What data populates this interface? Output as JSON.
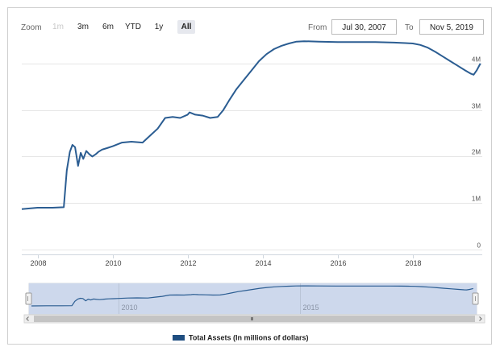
{
  "range_selector": {
    "zoom_label": "Zoom",
    "buttons": [
      {
        "label": "1m",
        "state": "disabled"
      },
      {
        "label": "3m",
        "state": "normal"
      },
      {
        "label": "6m",
        "state": "normal"
      },
      {
        "label": "YTD",
        "state": "normal"
      },
      {
        "label": "1y",
        "state": "normal"
      },
      {
        "label": "All",
        "state": "active"
      }
    ],
    "from_label": "From",
    "from_value": "Jul 30, 2007",
    "to_label": "To",
    "to_value": "Nov 5, 2019"
  },
  "colors": {
    "series": "#2b5d92",
    "legend_swatch": "#1f4e80",
    "navigator_fill": "#cdd8ec",
    "grid": "#e6e6e6"
  },
  "chart_data": {
    "type": "line",
    "title": "",
    "xlabel": "",
    "ylabel": "",
    "xlim": [
      2007.58,
      2019.85
    ],
    "ylim": [
      0,
      4500000
    ],
    "x_ticks": [
      2008,
      2010,
      2012,
      2014,
      2016,
      2018
    ],
    "x_tick_labels": [
      "2008",
      "2010",
      "2012",
      "2014",
      "2016",
      "2018"
    ],
    "y_ticks": [
      0,
      1000000,
      2000000,
      3000000,
      4000000
    ],
    "y_tick_labels": [
      "0",
      "1M",
      "2M",
      "3M",
      "4M"
    ],
    "grid": true,
    "legend_position": "bottom-center",
    "series": [
      {
        "name": "Total Assets (In millions of dollars)",
        "x": [
          2007.58,
          2008.0,
          2008.4,
          2008.7,
          2008.78,
          2008.86,
          2008.93,
          2009.0,
          2009.08,
          2009.15,
          2009.22,
          2009.3,
          2009.38,
          2009.46,
          2009.55,
          2009.62,
          2009.72,
          2009.85,
          2010.0,
          2010.25,
          2010.5,
          2010.8,
          2011.0,
          2011.2,
          2011.4,
          2011.6,
          2011.8,
          2012.0,
          2012.05,
          2012.2,
          2012.4,
          2012.6,
          2012.8,
          2012.95,
          2013.1,
          2013.3,
          2013.5,
          2013.7,
          2013.9,
          2014.1,
          2014.3,
          2014.5,
          2014.7,
          2014.9,
          2015.1,
          2015.5,
          2016.0,
          2016.5,
          2017.0,
          2017.5,
          2017.8,
          2018.0,
          2018.2,
          2018.4,
          2018.6,
          2018.8,
          2019.0,
          2019.2,
          2019.4,
          2019.55,
          2019.62,
          2019.7,
          2019.8
        ],
        "values": [
          870000,
          900000,
          900000,
          910000,
          1700000,
          2100000,
          2250000,
          2200000,
          1800000,
          2080000,
          1950000,
          2120000,
          2050000,
          2000000,
          2050000,
          2100000,
          2150000,
          2180000,
          2220000,
          2300000,
          2320000,
          2300000,
          2450000,
          2600000,
          2830000,
          2850000,
          2830000,
          2900000,
          2950000,
          2900000,
          2880000,
          2830000,
          2850000,
          3000000,
          3200000,
          3450000,
          3650000,
          3850000,
          4050000,
          4200000,
          4310000,
          4380000,
          4430000,
          4470000,
          4480000,
          4470000,
          4460000,
          4460000,
          4460000,
          4450000,
          4440000,
          4430000,
          4400000,
          4340000,
          4250000,
          4150000,
          4050000,
          3950000,
          3850000,
          3780000,
          3760000,
          3850000,
          4000000
        ]
      }
    ],
    "navigator": {
      "x_tick_labels": [
        "2010",
        "2015"
      ],
      "x_ticks": [
        2010,
        2015
      ]
    }
  },
  "legend": {
    "label": "Total Assets (In millions of dollars)"
  }
}
